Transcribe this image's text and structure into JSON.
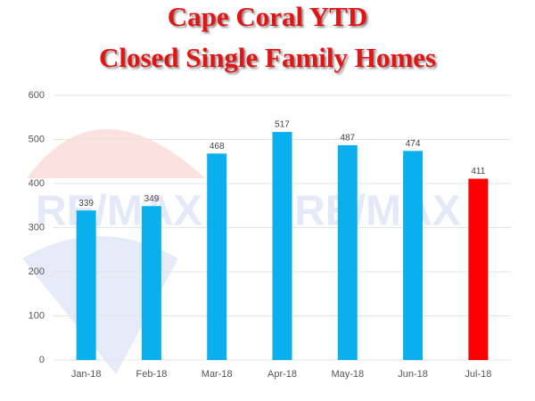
{
  "chart_data": {
    "type": "bar",
    "title": [
      "Cape Coral YTD",
      "Closed Single Family Homes"
    ],
    "watermark": "RE/MAX",
    "categories": [
      "Jan-18",
      "Feb-18",
      "Mar-18",
      "Apr-18",
      "May-18",
      "Jun-18",
      "Jul-18"
    ],
    "values": [
      339,
      349,
      468,
      517,
      487,
      474,
      411
    ],
    "colors": [
      "#0ab0ee",
      "#0ab0ee",
      "#0ab0ee",
      "#0ab0ee",
      "#0ab0ee",
      "#0ab0ee",
      "#ff0000"
    ],
    "ylim": [
      0,
      600
    ],
    "yticks": [
      0,
      100,
      200,
      300,
      400,
      500,
      600
    ],
    "grid": true
  }
}
